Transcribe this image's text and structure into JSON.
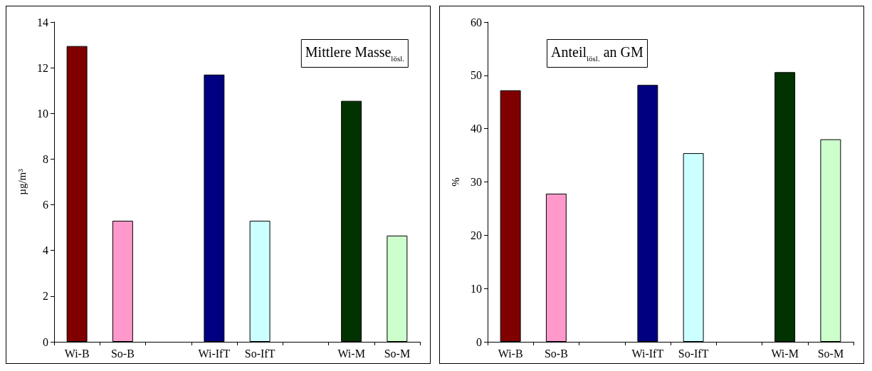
{
  "chart_data": [
    {
      "type": "bar",
      "title": "Mittlere Masse$_{lösl.}$",
      "ylabel": "µg/m³",
      "categories": [
        "Wi-B",
        "So-B",
        null,
        "Wi-IfT",
        "So-IfT",
        null,
        "Wi-M",
        "So-M"
      ],
      "values": [
        12.95,
        5.3,
        null,
        11.7,
        5.3,
        null,
        10.55,
        4.65
      ],
      "colors": [
        "#800000",
        "#ff99cc",
        null,
        "#000080",
        "#ccffff",
        null,
        "#003300",
        "#ccffcc"
      ],
      "ylim": [
        0,
        14
      ],
      "yticks": [
        0,
        2,
        4,
        6,
        8,
        10,
        12,
        14
      ],
      "grid": false
    },
    {
      "type": "bar",
      "title": "Anteil$_{lösl.}$ an GM",
      "ylabel": "%",
      "categories": [
        "Wi-B",
        "So-B",
        null,
        "Wi-IfT",
        "So-IfT",
        null,
        "Wi-M",
        "So-M"
      ],
      "values": [
        47.2,
        27.8,
        null,
        48.2,
        35.4,
        null,
        50.6,
        38.0
      ],
      "colors": [
        "#800000",
        "#ff99cc",
        null,
        "#000080",
        "#ccffff",
        null,
        "#003300",
        "#ccffcc"
      ],
      "ylim": [
        0,
        60
      ],
      "yticks": [
        0,
        10,
        20,
        30,
        40,
        50,
        60
      ],
      "grid": false
    }
  ]
}
